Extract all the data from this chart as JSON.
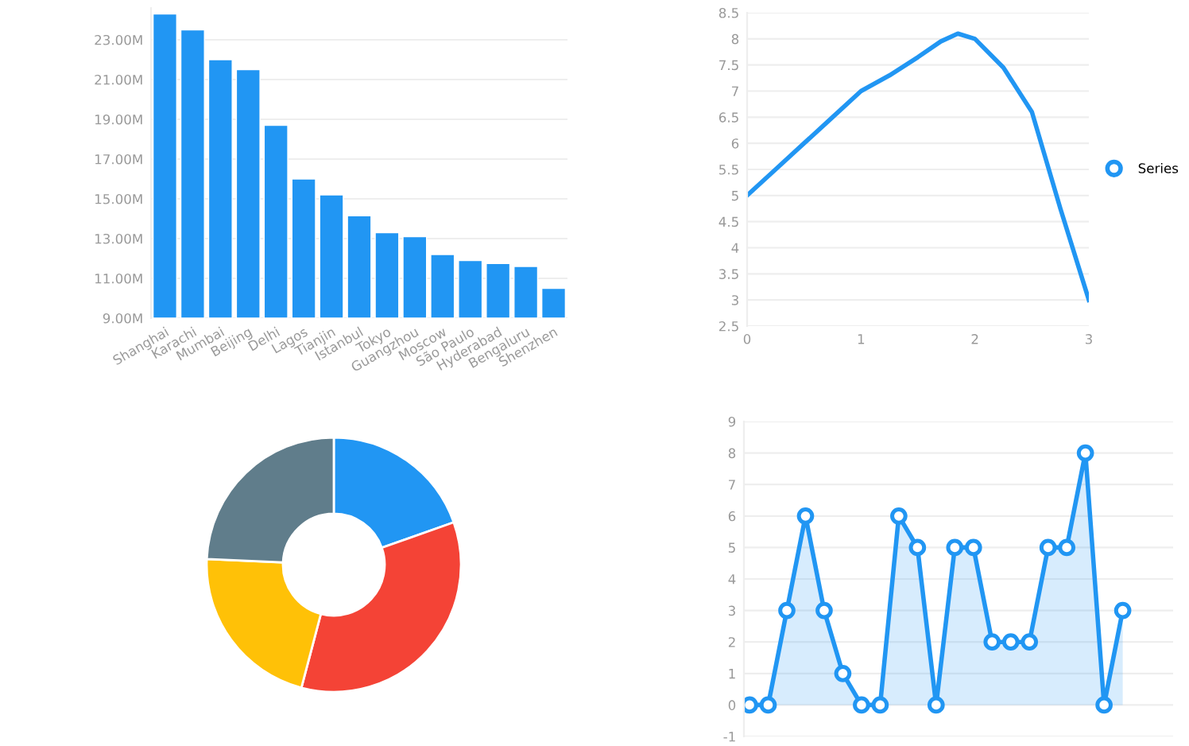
{
  "chart_data": [
    {
      "type": "bar",
      "categories": [
        "Shanghai",
        "Karachi",
        "Mumbai",
        "Beijing",
        "Delhi",
        "Lagos",
        "Tianjin",
        "Istanbul",
        "Tokyo",
        "Guangzhou",
        "Moscow",
        "São Paulo",
        "Hyderabad",
        "Bengaluru",
        "Shenzhen"
      ],
      "values": [
        24.3,
        23.5,
        22.0,
        21.5,
        18.7,
        16.0,
        15.2,
        14.15,
        13.3,
        13.1,
        12.2,
        11.9,
        11.75,
        11.6,
        10.5
      ],
      "color": "#2196f3",
      "ylim": [
        9,
        24.6
      ],
      "yticks": [
        {
          "value": 9,
          "label": "9.00M"
        },
        {
          "value": 11,
          "label": "11.00M"
        },
        {
          "value": 13,
          "label": "13.00M"
        },
        {
          "value": 15,
          "label": "15.00M"
        },
        {
          "value": 17,
          "label": "17.00M"
        },
        {
          "value": 19,
          "label": "19.00M"
        },
        {
          "value": 21,
          "label": "21.00M"
        },
        {
          "value": 23,
          "label": "23.00M"
        }
      ],
      "grid": "y"
    },
    {
      "type": "line",
      "x": [
        0,
        0.25,
        0.5,
        0.75,
        1,
        1.25,
        1.5,
        1.7,
        1.85,
        2,
        2.25,
        2.5,
        2.75,
        3
      ],
      "series": [
        {
          "name": "Series",
          "color": "#2196f3",
          "values": [
            5,
            5.5,
            6,
            6.5,
            7,
            7.3,
            7.65,
            7.95,
            8.1,
            8,
            7.45,
            6.6,
            4.75,
            3
          ]
        }
      ],
      "xlim": [
        0,
        3
      ],
      "xticks": [
        0,
        1,
        2,
        3
      ],
      "ylim": [
        2.5,
        8.5
      ],
      "yticks": [
        2.5,
        3,
        3.5,
        4,
        4.5,
        5,
        5.5,
        6,
        6.5,
        7,
        7.5,
        8,
        8.5
      ],
      "grid": "y",
      "legend": "right"
    },
    {
      "type": "donut",
      "categories": [
        null,
        null,
        null,
        null
      ],
      "values": [
        19.6,
        34.5,
        21.6,
        24.3
      ],
      "colors": [
        "#2196f3",
        "#f44336",
        "#ffc107",
        "#607d8b"
      ]
    },
    {
      "type": "area",
      "categories": [
        null,
        null,
        null,
        null,
        null,
        null,
        null,
        null,
        null,
        null,
        null,
        null,
        null,
        null,
        null,
        null,
        null,
        null,
        null,
        null,
        null
      ],
      "values": [
        0,
        0,
        3,
        6,
        3,
        1,
        0,
        0,
        6,
        5,
        0,
        5,
        5,
        2,
        2,
        2,
        5,
        5,
        8,
        0,
        3
      ],
      "color": "#2196f3",
      "ylim": [
        -1,
        9
      ],
      "yticks": [
        -1,
        0,
        1,
        2,
        3,
        4,
        5,
        6,
        7,
        8,
        9
      ],
      "grid": "y",
      "marker": "circle"
    }
  ]
}
